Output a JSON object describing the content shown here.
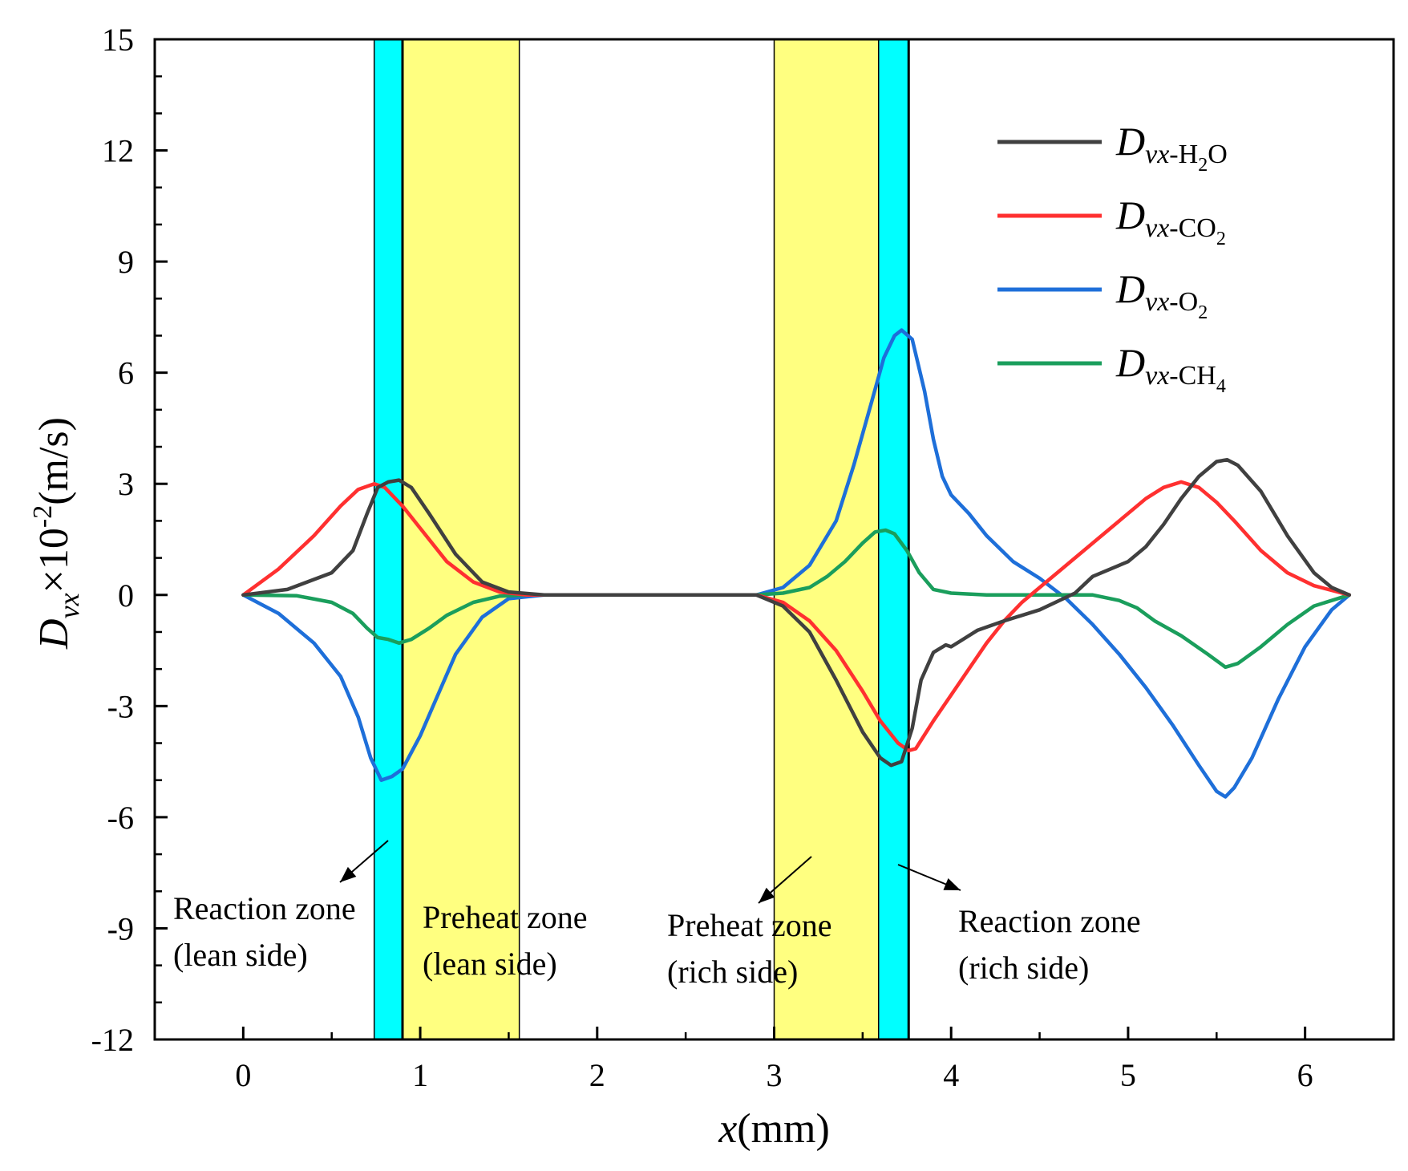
{
  "chart_data": {
    "type": "line",
    "xlabel": {
      "var": "x",
      "unit": "(mm)"
    },
    "ylabel": {
      "var": "D",
      "sub": "vx",
      "mid": "×10",
      "sup": "-2",
      "unit": "(m/s)"
    },
    "xlim": [
      -0.5,
      6.5
    ],
    "ylim": [
      -12,
      15
    ],
    "xticks": [
      0,
      1,
      2,
      3,
      4,
      5,
      6
    ],
    "yticks": [
      -12,
      -9,
      -6,
      -3,
      0,
      3,
      6,
      9,
      12,
      15
    ],
    "xtick_labels": [
      "0",
      "1",
      "2",
      "3",
      "4",
      "5",
      "6"
    ],
    "ytick_labels": [
      "-12",
      "-9",
      "-6",
      "-3",
      "0",
      "3",
      "6",
      "9",
      "12",
      "15"
    ],
    "grid": false,
    "legend_position": "top-right",
    "bands": [
      {
        "x0": 0.74,
        "x1": 0.9,
        "color": "#00ffff"
      },
      {
        "x0": 0.9,
        "x1": 1.56,
        "color": "#ffff80"
      },
      {
        "x0": 3.0,
        "x1": 3.59,
        "color": "#ffff80"
      },
      {
        "x0": 3.59,
        "x1": 3.76,
        "color": "#00ffff"
      }
    ],
    "annotations": [
      {
        "lines": [
          "Reaction zone",
          "(lean side)"
        ]
      },
      {
        "lines": [
          "Preheat zone",
          "(lean side)"
        ]
      },
      {
        "lines": [
          "Preheat zone",
          "(rich side)"
        ]
      },
      {
        "lines": [
          "Reaction zone",
          "(rich side)"
        ]
      }
    ],
    "series": [
      {
        "name": "H2O",
        "legend": {
          "main": "D",
          "sub": "vx",
          "dash": "-",
          "species": [
            [
              "H",
              ""
            ],
            [
              "2",
              "sub"
            ],
            [
              "O",
              ""
            ]
          ]
        },
        "color": "#404040",
        "points": [
          [
            0,
            0
          ],
          [
            0.25,
            0.15
          ],
          [
            0.5,
            0.6
          ],
          [
            0.62,
            1.2
          ],
          [
            0.7,
            2.2
          ],
          [
            0.76,
            2.9
          ],
          [
            0.82,
            3.05
          ],
          [
            0.88,
            3.1
          ],
          [
            0.95,
            2.9
          ],
          [
            1.05,
            2.2
          ],
          [
            1.2,
            1.1
          ],
          [
            1.35,
            0.35
          ],
          [
            1.5,
            0.08
          ],
          [
            1.7,
            0
          ],
          [
            2.9,
            0
          ],
          [
            3.05,
            -0.3
          ],
          [
            3.2,
            -1.0
          ],
          [
            3.35,
            -2.3
          ],
          [
            3.5,
            -3.7
          ],
          [
            3.6,
            -4.4
          ],
          [
            3.66,
            -4.6
          ],
          [
            3.72,
            -4.5
          ],
          [
            3.78,
            -3.6
          ],
          [
            3.83,
            -2.3
          ],
          [
            3.9,
            -1.55
          ],
          [
            3.97,
            -1.35
          ],
          [
            4.0,
            -1.4
          ],
          [
            4.05,
            -1.25
          ],
          [
            4.15,
            -0.95
          ],
          [
            4.3,
            -0.7
          ],
          [
            4.5,
            -0.4
          ],
          [
            4.7,
            0.05
          ],
          [
            4.8,
            0.5
          ],
          [
            4.9,
            0.7
          ],
          [
            5.0,
            0.9
          ],
          [
            5.1,
            1.3
          ],
          [
            5.2,
            1.9
          ],
          [
            5.3,
            2.6
          ],
          [
            5.4,
            3.2
          ],
          [
            5.5,
            3.6
          ],
          [
            5.56,
            3.65
          ],
          [
            5.62,
            3.5
          ],
          [
            5.75,
            2.8
          ],
          [
            5.9,
            1.6
          ],
          [
            6.05,
            0.6
          ],
          [
            6.15,
            0.2
          ],
          [
            6.25,
            0
          ]
        ]
      },
      {
        "name": "CO2",
        "legend": {
          "main": "D",
          "sub": "vx",
          "dash": "-",
          "species": [
            [
              "CO",
              ""
            ],
            [
              "2",
              "sub"
            ]
          ]
        },
        "color": "#ff3030",
        "points": [
          [
            0,
            0
          ],
          [
            0.2,
            0.7
          ],
          [
            0.4,
            1.6
          ],
          [
            0.55,
            2.4
          ],
          [
            0.65,
            2.85
          ],
          [
            0.74,
            3.0
          ],
          [
            0.8,
            2.9
          ],
          [
            0.9,
            2.4
          ],
          [
            1.0,
            1.8
          ],
          [
            1.15,
            0.9
          ],
          [
            1.3,
            0.35
          ],
          [
            1.45,
            0.08
          ],
          [
            1.6,
            0
          ],
          [
            2.9,
            0
          ],
          [
            3.05,
            -0.2
          ],
          [
            3.2,
            -0.7
          ],
          [
            3.35,
            -1.5
          ],
          [
            3.5,
            -2.6
          ],
          [
            3.6,
            -3.4
          ],
          [
            3.7,
            -4.0
          ],
          [
            3.76,
            -4.2
          ],
          [
            3.8,
            -4.15
          ],
          [
            3.9,
            -3.4
          ],
          [
            4.0,
            -2.7
          ],
          [
            4.1,
            -2.0
          ],
          [
            4.2,
            -1.3
          ],
          [
            4.3,
            -0.7
          ],
          [
            4.4,
            -0.2
          ],
          [
            4.5,
            0.2
          ],
          [
            4.6,
            0.6
          ],
          [
            4.7,
            1.0
          ],
          [
            4.8,
            1.4
          ],
          [
            4.9,
            1.8
          ],
          [
            5.0,
            2.2
          ],
          [
            5.1,
            2.6
          ],
          [
            5.2,
            2.9
          ],
          [
            5.3,
            3.05
          ],
          [
            5.4,
            2.9
          ],
          [
            5.5,
            2.5
          ],
          [
            5.6,
            2.0
          ],
          [
            5.75,
            1.2
          ],
          [
            5.9,
            0.6
          ],
          [
            6.05,
            0.25
          ],
          [
            6.25,
            0
          ]
        ]
      },
      {
        "name": "O2",
        "legend": {
          "main": "D",
          "sub": "vx",
          "dash": "-",
          "species": [
            [
              "O",
              ""
            ],
            [
              "2",
              "sub"
            ]
          ]
        },
        "color": "#1e6fd9",
        "points": [
          [
            0,
            0
          ],
          [
            0.2,
            -0.5
          ],
          [
            0.4,
            -1.3
          ],
          [
            0.55,
            -2.2
          ],
          [
            0.65,
            -3.3
          ],
          [
            0.72,
            -4.4
          ],
          [
            0.78,
            -5.0
          ],
          [
            0.84,
            -4.9
          ],
          [
            0.9,
            -4.7
          ],
          [
            1.0,
            -3.8
          ],
          [
            1.1,
            -2.7
          ],
          [
            1.2,
            -1.6
          ],
          [
            1.35,
            -0.6
          ],
          [
            1.5,
            -0.1
          ],
          [
            1.7,
            0
          ],
          [
            2.9,
            0
          ],
          [
            3.05,
            0.2
          ],
          [
            3.2,
            0.8
          ],
          [
            3.35,
            2.0
          ],
          [
            3.45,
            3.5
          ],
          [
            3.55,
            5.2
          ],
          [
            3.62,
            6.4
          ],
          [
            3.68,
            7.0
          ],
          [
            3.72,
            7.15
          ],
          [
            3.78,
            6.9
          ],
          [
            3.85,
            5.5
          ],
          [
            3.9,
            4.2
          ],
          [
            3.95,
            3.2
          ],
          [
            4.0,
            2.7
          ],
          [
            4.1,
            2.2
          ],
          [
            4.2,
            1.6
          ],
          [
            4.35,
            0.9
          ],
          [
            4.5,
            0.45
          ],
          [
            4.65,
            -0.1
          ],
          [
            4.8,
            -0.8
          ],
          [
            4.95,
            -1.6
          ],
          [
            5.1,
            -2.5
          ],
          [
            5.25,
            -3.5
          ],
          [
            5.4,
            -4.6
          ],
          [
            5.5,
            -5.3
          ],
          [
            5.55,
            -5.45
          ],
          [
            5.6,
            -5.2
          ],
          [
            5.7,
            -4.4
          ],
          [
            5.85,
            -2.8
          ],
          [
            6.0,
            -1.4
          ],
          [
            6.15,
            -0.4
          ],
          [
            6.25,
            0
          ]
        ]
      },
      {
        "name": "CH4",
        "legend": {
          "main": "D",
          "sub": "vx",
          "dash": "-",
          "species": [
            [
              "CH",
              ""
            ],
            [
              "4",
              "sub"
            ]
          ]
        },
        "color": "#1a9e5c",
        "points": [
          [
            0,
            0
          ],
          [
            0.3,
            -0.02
          ],
          [
            0.5,
            -0.2
          ],
          [
            0.62,
            -0.5
          ],
          [
            0.7,
            -0.9
          ],
          [
            0.76,
            -1.15
          ],
          [
            0.82,
            -1.2
          ],
          [
            0.88,
            -1.3
          ],
          [
            0.95,
            -1.2
          ],
          [
            1.05,
            -0.9
          ],
          [
            1.15,
            -0.55
          ],
          [
            1.3,
            -0.2
          ],
          [
            1.45,
            -0.03
          ],
          [
            1.6,
            0
          ],
          [
            2.9,
            0
          ],
          [
            3.05,
            0.05
          ],
          [
            3.2,
            0.2
          ],
          [
            3.3,
            0.5
          ],
          [
            3.4,
            0.9
          ],
          [
            3.5,
            1.4
          ],
          [
            3.57,
            1.7
          ],
          [
            3.63,
            1.75
          ],
          [
            3.68,
            1.65
          ],
          [
            3.75,
            1.2
          ],
          [
            3.82,
            0.6
          ],
          [
            3.9,
            0.15
          ],
          [
            4.0,
            0.05
          ],
          [
            4.2,
            0
          ],
          [
            4.8,
            0
          ],
          [
            4.95,
            -0.15
          ],
          [
            5.05,
            -0.35
          ],
          [
            5.15,
            -0.7
          ],
          [
            5.3,
            -1.1
          ],
          [
            5.45,
            -1.6
          ],
          [
            5.55,
            -1.95
          ],
          [
            5.62,
            -1.85
          ],
          [
            5.75,
            -1.4
          ],
          [
            5.9,
            -0.8
          ],
          [
            6.05,
            -0.3
          ],
          [
            6.25,
            0
          ]
        ]
      }
    ]
  }
}
